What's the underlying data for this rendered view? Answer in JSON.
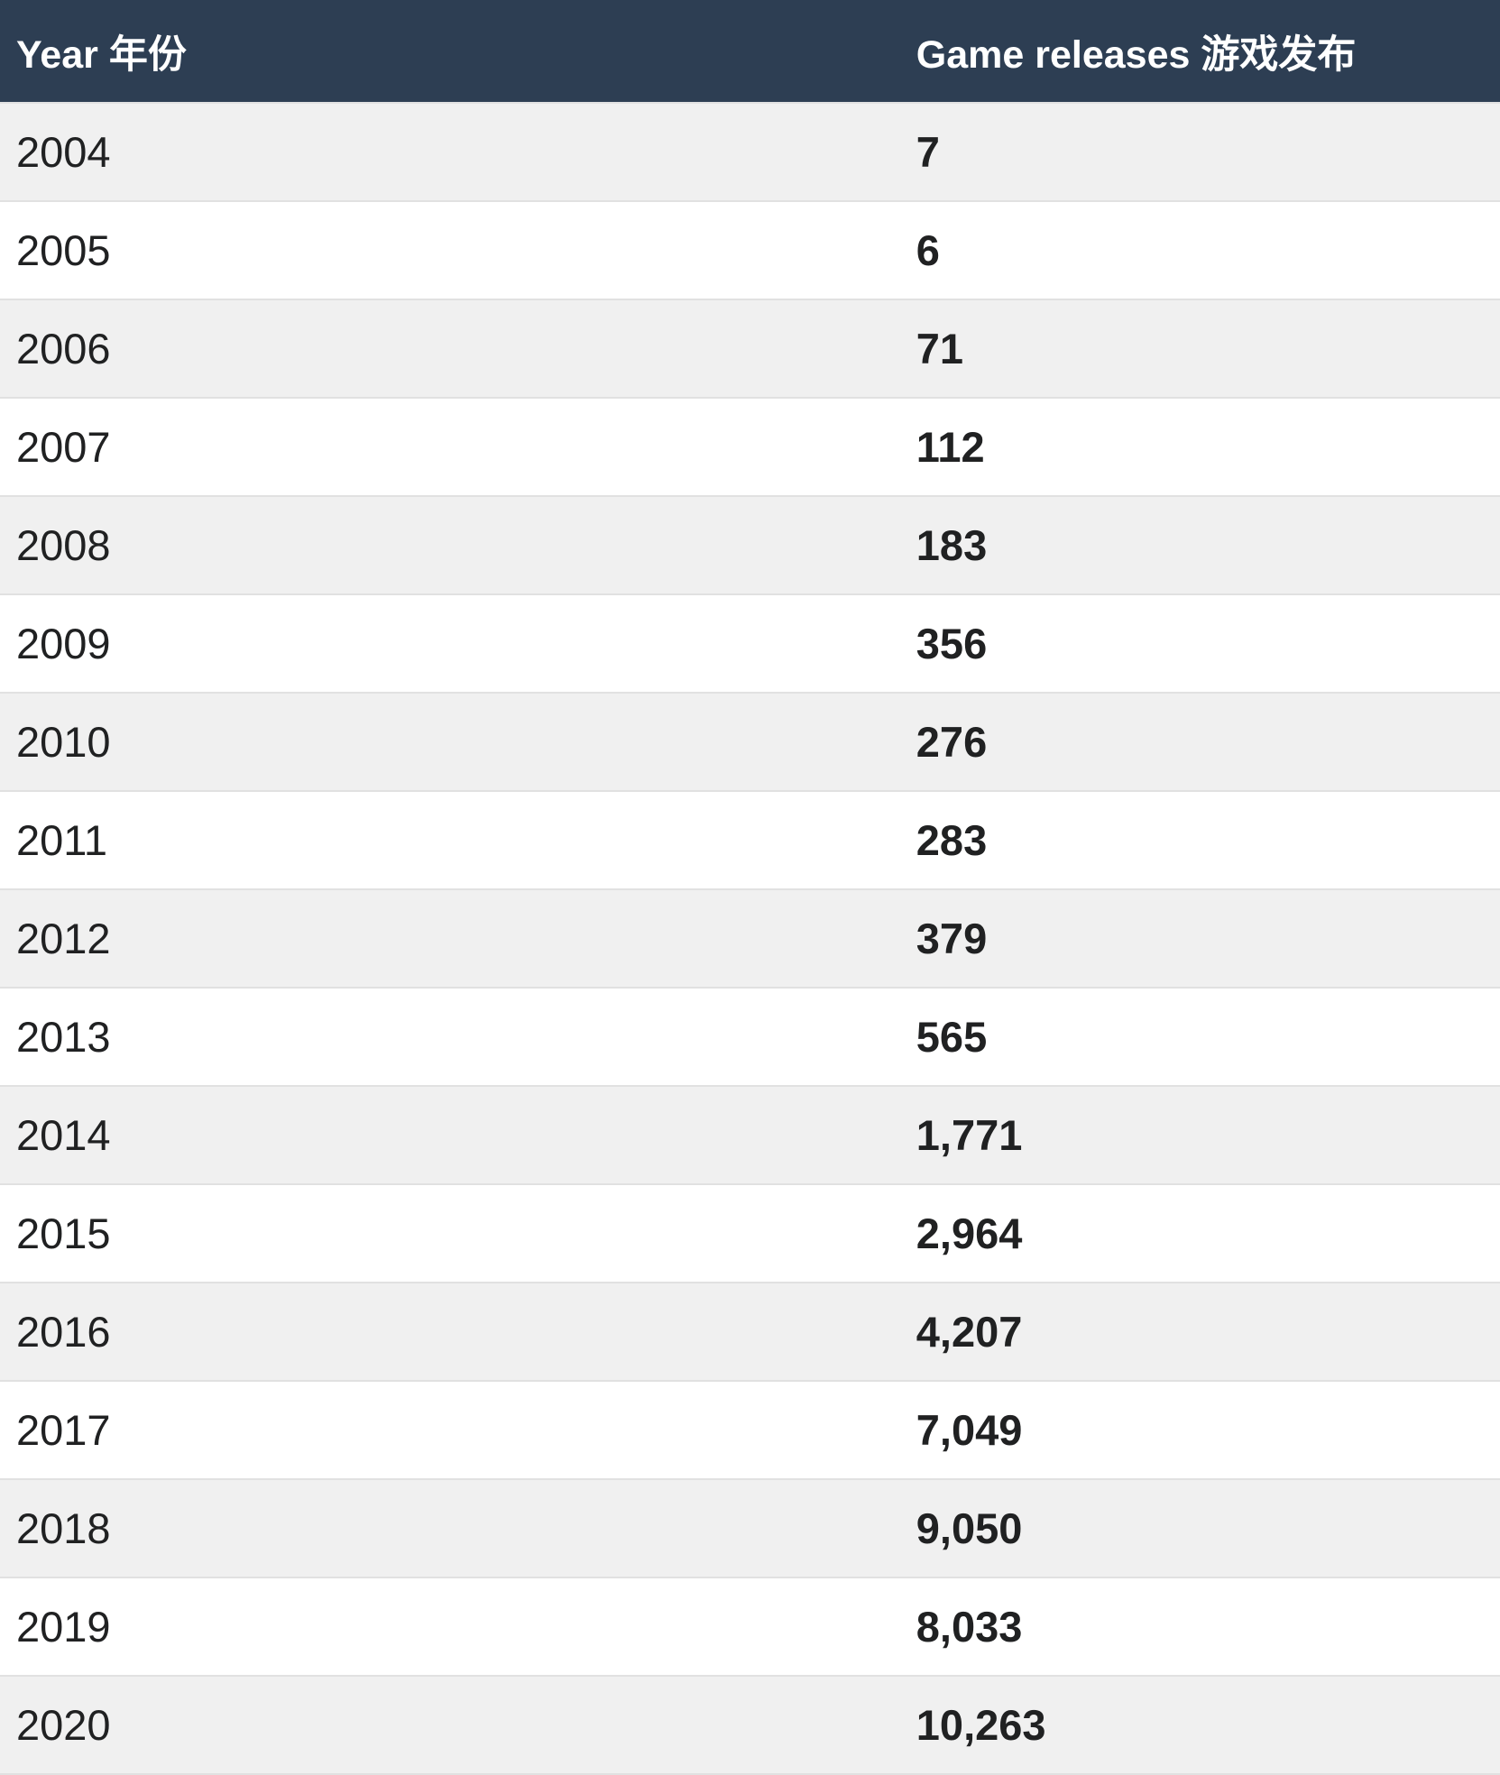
{
  "table": {
    "columns": [
      {
        "label": "Year 年份"
      },
      {
        "label": "Game releases 游戏发布"
      }
    ],
    "rows": [
      {
        "year": "2004",
        "releases": "7"
      },
      {
        "year": "2005",
        "releases": "6"
      },
      {
        "year": "2006",
        "releases": "71"
      },
      {
        "year": "2007",
        "releases": "112"
      },
      {
        "year": "2008",
        "releases": "183"
      },
      {
        "year": "2009",
        "releases": "356"
      },
      {
        "year": "2010",
        "releases": "276"
      },
      {
        "year": "2011",
        "releases": "283"
      },
      {
        "year": "2012",
        "releases": "379"
      },
      {
        "year": "2013",
        "releases": "565"
      },
      {
        "year": "2014",
        "releases": "1,771"
      },
      {
        "year": "2015",
        "releases": "2,964"
      },
      {
        "year": "2016",
        "releases": "4,207"
      },
      {
        "year": "2017",
        "releases": "7,049"
      },
      {
        "year": "2018",
        "releases": "9,050"
      },
      {
        "year": "2019",
        "releases": "8,033"
      },
      {
        "year": "2020",
        "releases": "10,263"
      }
    ]
  },
  "colors": {
    "header_bg": "#2d3e53",
    "header_text": "#ffffff",
    "row_stripe_bg": "#f0f0f0",
    "row_bg": "#ffffff",
    "row_border": "#e1e1e1",
    "body_text": "#202122"
  },
  "chart_data": {
    "type": "table",
    "columns": [
      "Year 年份",
      "Game releases 游戏发布"
    ],
    "categories": [
      "2004",
      "2005",
      "2006",
      "2007",
      "2008",
      "2009",
      "2010",
      "2011",
      "2012",
      "2013",
      "2014",
      "2015",
      "2016",
      "2017",
      "2018",
      "2019",
      "2020"
    ],
    "values": [
      7,
      6,
      71,
      112,
      183,
      356,
      276,
      283,
      379,
      565,
      1771,
      2964,
      4207,
      7049,
      9050,
      8033,
      10263
    ],
    "layout_hints": {
      "striped_rows": true,
      "header_style": "dark-navy",
      "value_alignment": "left",
      "last_row_partially_visible": true
    }
  }
}
